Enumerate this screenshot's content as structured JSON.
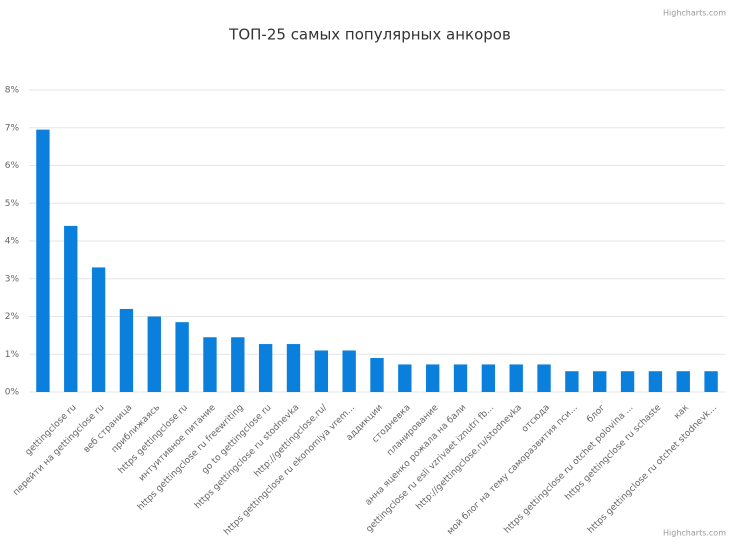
{
  "chart_data": {
    "type": "bar",
    "title": "ТОП-25 самых популярных анкоров",
    "credits": "Highcharts.com",
    "categories": [
      null,
      "gettingclose ru",
      "перейти на gettingclose ru",
      "веб страница",
      "приближаясь",
      "https gettingclose ru",
      "интуитивное питание",
      "https gettingclose ru freewriting",
      "go to gettingclose ru",
      "https gettingclose ru stodnevka",
      "http://gettingclose.ru/",
      "https gettingclose ru ekonomiya vrem...",
      "аддикции",
      "стодневка",
      "планирование",
      "анна яценко рожала на бали",
      "gettingclose ru esli vzrivaet iznutri fb...",
      "http://gettingclose.ru/stodnevka",
      "отсюда",
      "мой блог на тему саморазвития пси...",
      "блог",
      "https gettingclose ru otchet polovina ...",
      "https gettingclose ru schaste",
      "как",
      "https gettingclose ru otchet stodnevk..."
    ],
    "values": [
      6.95,
      4.4,
      3.3,
      2.2,
      2.0,
      1.85,
      1.45,
      1.45,
      1.27,
      1.27,
      1.1,
      1.1,
      0.9,
      0.73,
      0.73,
      0.73,
      0.73,
      0.73,
      0.73,
      0.55,
      0.55,
      0.55,
      0.55,
      0.55,
      0.55
    ],
    "color": "#0a7fdc",
    "ylim": [
      0,
      8
    ],
    "yticks": [
      {
        "value": 0,
        "label": "0%"
      },
      {
        "value": 1,
        "label": "1%"
      },
      {
        "value": 2,
        "label": "2%"
      },
      {
        "value": 3,
        "label": "3%"
      },
      {
        "value": 4,
        "label": "4%"
      },
      {
        "value": 5,
        "label": "5%"
      },
      {
        "value": 6,
        "label": "6%"
      },
      {
        "value": 7,
        "label": "7%"
      },
      {
        "value": 8,
        "label": "8%"
      }
    ],
    "grid": true
  }
}
